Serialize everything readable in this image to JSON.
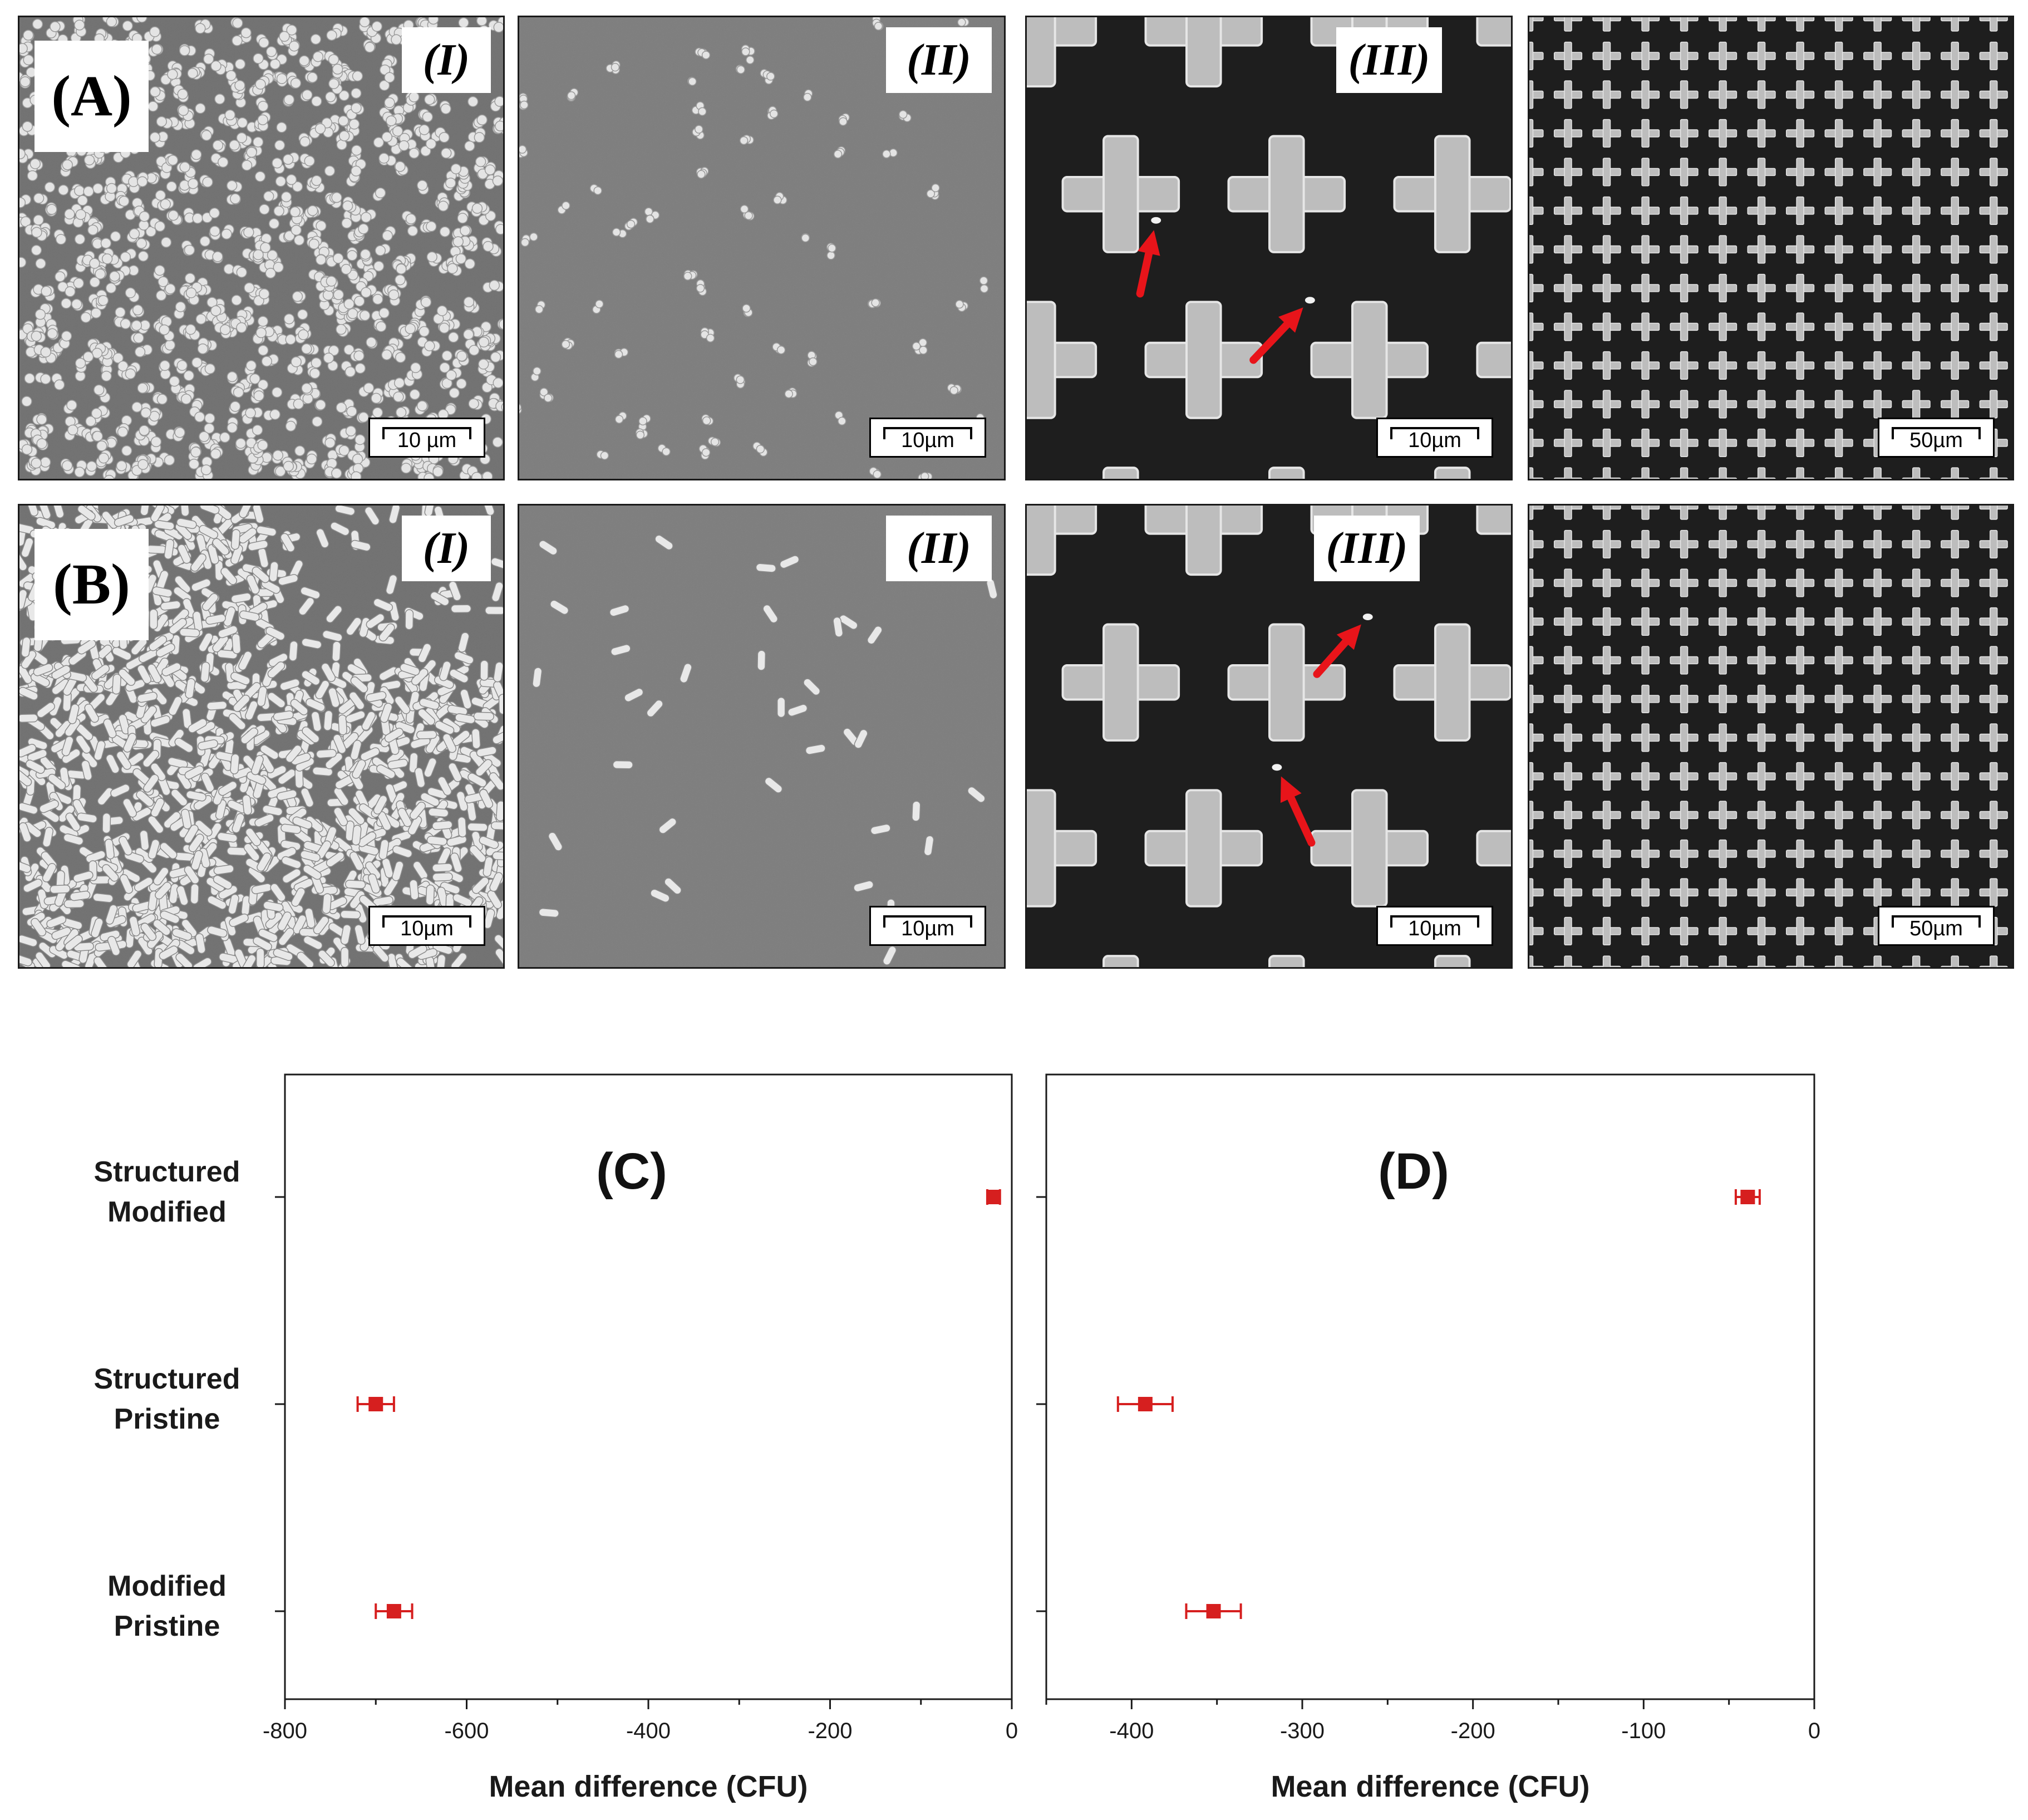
{
  "figure": {
    "row_labels": [
      "(A)",
      "(B)"
    ],
    "sem_rows": [
      {
        "label": "(A)",
        "panels": [
          {
            "sublabel": "(I)",
            "scale": "10 µm",
            "surface": "pristine",
            "cells": "cocci",
            "density": "dense"
          },
          {
            "sublabel": "(II)",
            "scale": "10µm",
            "surface": "modified",
            "cells": "cocci",
            "density": "sparse"
          },
          {
            "sublabel": "(III)",
            "scale": "10µm",
            "surface": "structured-zoom",
            "cells": "cocci",
            "density": "arrows"
          },
          {
            "sublabel": "",
            "scale": "50µm",
            "surface": "structured-wide",
            "cells": "none",
            "density": "none"
          }
        ]
      },
      {
        "label": "(B)",
        "panels": [
          {
            "sublabel": "(I)",
            "scale": "10µm",
            "surface": "pristine",
            "cells": "rods",
            "density": "dense"
          },
          {
            "sublabel": "(II)",
            "scale": "10µm",
            "surface": "modified",
            "cells": "rods",
            "density": "sparse"
          },
          {
            "sublabel": "(III)",
            "scale": "10µm",
            "surface": "structured-zoom",
            "cells": "rods",
            "density": "arrows"
          },
          {
            "sublabel": "",
            "scale": "50µm",
            "surface": "structured-wide",
            "cells": "none",
            "density": "none"
          }
        ]
      }
    ],
    "arrow_color": "#e8141a"
  },
  "chart_data": [
    {
      "type": "scatter",
      "title": "(C)",
      "xlabel": "Mean difference (CFU)",
      "ylabel": "",
      "categories": [
        [
          "Structured",
          "Modified"
        ],
        [
          "Structured",
          "Pristine"
        ],
        [
          "Modified",
          "Pristine"
        ]
      ],
      "points": [
        {
          "category": "Structured Modified",
          "x": -20,
          "xerr": 7
        },
        {
          "category": "Structured Pristine",
          "x": -700,
          "xerr": 20
        },
        {
          "category": "Modified Pristine",
          "x": -680,
          "xerr": 20
        }
      ],
      "xlim": [
        -800,
        0
      ],
      "xticks": [
        -800,
        -600,
        -400,
        -200,
        0
      ],
      "xminor": 100,
      "marker_color": "#d61f1f",
      "grid": false
    },
    {
      "type": "scatter",
      "title": "(D)",
      "xlabel": "Mean difference (CFU)",
      "ylabel": "",
      "categories": [
        [
          "Structured",
          "Modified"
        ],
        [
          "Structured",
          "Pristine"
        ],
        [
          "Modified",
          "Pristine"
        ]
      ],
      "points": [
        {
          "category": "Structured Modified",
          "x": -39,
          "xerr": 7
        },
        {
          "category": "Structured Pristine",
          "x": -392,
          "xerr": 16
        },
        {
          "category": "Modified Pristine",
          "x": -352,
          "xerr": 16
        }
      ],
      "xlim": [
        -450,
        0
      ],
      "xticks": [
        -400,
        -300,
        -200,
        -100,
        0
      ],
      "xminor": 50,
      "marker_color": "#d61f1f",
      "grid": false
    }
  ]
}
